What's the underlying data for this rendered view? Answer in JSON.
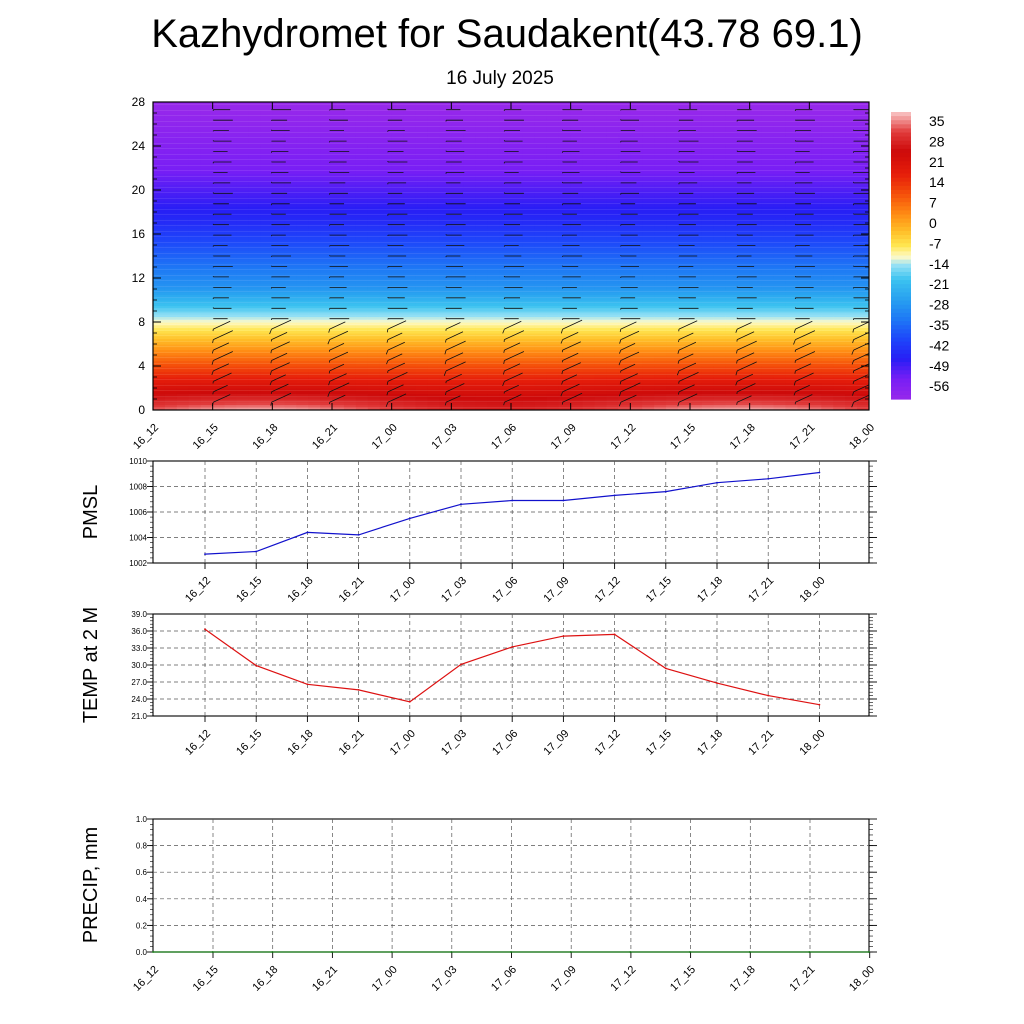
{
  "title": "Kazhydromet for Saudakent(43.78 69.1)",
  "subtitle": "16 July 2025",
  "time_labels": [
    "16_12",
    "16_15",
    "16_18",
    "16_21",
    "17_00",
    "17_03",
    "17_06",
    "17_09",
    "17_12",
    "17_15",
    "17_18",
    "17_21",
    "18_00"
  ],
  "chart_data": [
    {
      "type": "heatmap",
      "name": "upper-air-cross-section",
      "x": [
        "16_12",
        "16_15",
        "16_18",
        "16_21",
        "17_00",
        "17_03",
        "17_06",
        "17_09",
        "17_12",
        "17_15",
        "17_18",
        "17_21",
        "18_00"
      ],
      "y_ticks": [
        0,
        4,
        8,
        12,
        16,
        20,
        24,
        28
      ],
      "ylim": [
        0,
        28
      ],
      "values_description": "",
      "colorbar_labels": [
        "35",
        "28",
        "21",
        "14",
        "7",
        "0",
        "-7",
        "-14",
        "-21",
        "-28",
        "-35",
        "-42",
        "-49",
        "-56"
      ],
      "colorbar_range": [
        -63,
        38
      ],
      "wind_barbs": true,
      "grid": false
    },
    {
      "type": "line",
      "ylabel": "PMSL",
      "x": [
        "16_12",
        "16_15",
        "16_18",
        "16_21",
        "17_00",
        "17_03",
        "17_06",
        "17_09",
        "17_12",
        "17_15",
        "17_18",
        "17_21",
        "18_00"
      ],
      "values": [
        1002.7,
        1002.9,
        1004.4,
        1004.2,
        1005.5,
        1006.6,
        1006.9,
        1006.9,
        1007.3,
        1007.6,
        1008.3,
        1008.6,
        1009.1
      ],
      "ylim": [
        1002,
        1010
      ],
      "y_ticks": [
        "1002",
        "1004",
        "1006",
        "1008",
        "1010"
      ],
      "color": "#1111cc",
      "grid": true
    },
    {
      "type": "line",
      "ylabel": "TEMP at 2 M",
      "x": [
        "16_12",
        "16_15",
        "16_18",
        "16_21",
        "17_00",
        "17_03",
        "17_06",
        "17_09",
        "17_12",
        "17_15",
        "17_18",
        "17_21",
        "18_00"
      ],
      "values": [
        36.3,
        29.9,
        26.6,
        25.6,
        23.5,
        30.1,
        33.2,
        35.1,
        35.4,
        29.4,
        26.8,
        24.6,
        23.0
      ],
      "ylim": [
        21,
        39
      ],
      "y_ticks": [
        "21.0",
        "24.0",
        "27.0",
        "30.0",
        "33.0",
        "36.0",
        "39.0"
      ],
      "color": "#dd1111",
      "grid": true
    },
    {
      "type": "line",
      "ylabel": "PRECIP, mm",
      "x": [
        "16_12",
        "16_15",
        "16_18",
        "16_21",
        "17_00",
        "17_03",
        "17_06",
        "17_09",
        "17_12",
        "17_15",
        "17_18",
        "17_21",
        "18_00"
      ],
      "values": [
        0,
        0,
        0,
        0,
        0,
        0,
        0,
        0,
        0,
        0,
        0,
        0,
        0
      ],
      "ylim": [
        0,
        1
      ],
      "y_ticks": [
        "0.0",
        "0.2",
        "0.4",
        "0.6",
        "0.8",
        "1.0"
      ],
      "color": "#117711",
      "grid": true
    }
  ]
}
